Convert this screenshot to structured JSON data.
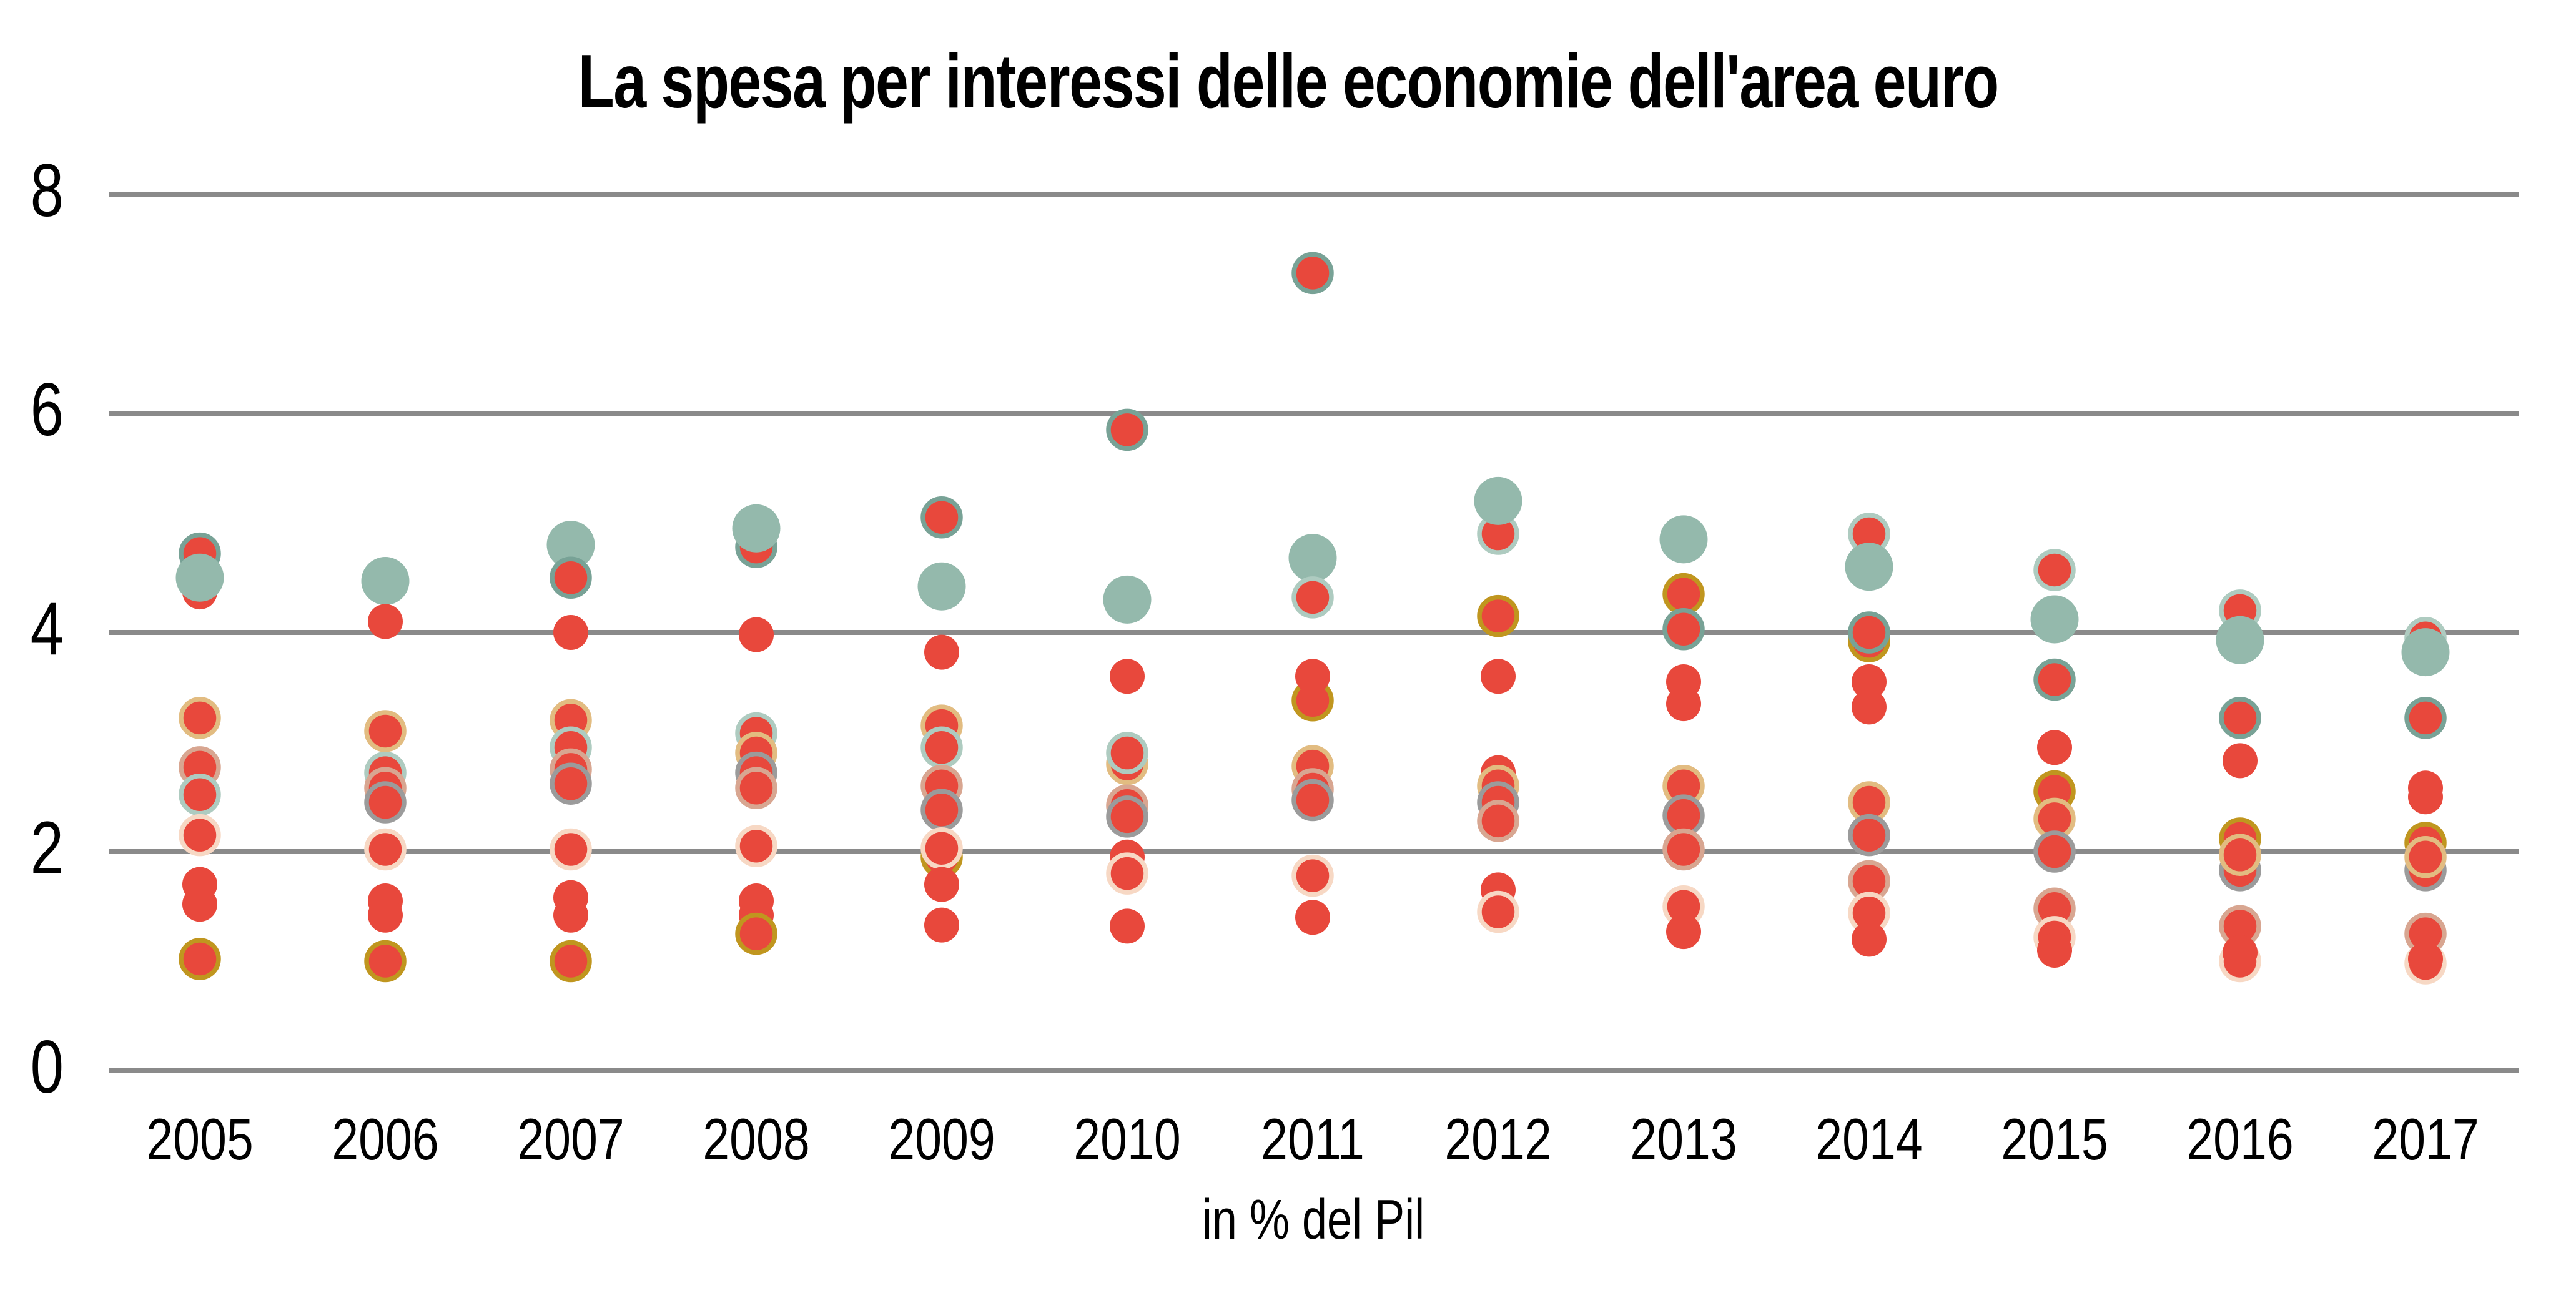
{
  "title": "La spesa per interessi delle economie dell'area euro",
  "xlabel": "in % del Pil",
  "colors": {
    "background": "#FFFFFF",
    "gridline": "#8A8A8A",
    "text": "#000000",
    "red_fill": "#E8483C",
    "teal_fill": "#94B9AC"
  },
  "chart_data": {
    "type": "scatter",
    "title": "La spesa per interessi delle economie dell'area euro",
    "xlabel": "in % del Pil",
    "ylabel": "",
    "x_categories": [
      2005,
      2006,
      2007,
      2008,
      2009,
      2010,
      2011,
      2012,
      2013,
      2014,
      2015,
      2016,
      2017
    ],
    "y_ticks": [
      8,
      6,
      4,
      2,
      0
    ],
    "ylim": [
      0,
      8.55
    ],
    "grid": "horizontal",
    "legend": "none",
    "units": "percent of GDP",
    "marker_styles": {
      "teal": {
        "fill": "#94B9AC",
        "stroke": "none",
        "r": 38.5,
        "note": "large plain teal circle"
      },
      "red": {
        "fill": "#E8483C",
        "stroke": "none",
        "r": 28,
        "note": "plain red circle"
      },
      "tealdark": {
        "fill": "#E8483C",
        "stroke": "#78A296",
        "r": 30,
        "note": "red circle, dark teal ring"
      },
      "lightteal": {
        "fill": "#E8483C",
        "stroke": "#AECBC0",
        "r": 30,
        "note": "red circle, light teal ring"
      },
      "tan": {
        "fill": "#E8483C",
        "stroke": "#E2BC81",
        "r": 30,
        "note": "red circle, tan ring"
      },
      "olive": {
        "fill": "#E8483C",
        "stroke": "#C0961F",
        "r": 30,
        "note": "red circle, dark gold ring"
      },
      "gray": {
        "fill": "#E8483C",
        "stroke": "#9B9B9B",
        "r": 30,
        "note": "red circle, gray ring"
      },
      "salmon": {
        "fill": "#E8483C",
        "stroke": "#D8A691",
        "r": 30,
        "note": "red circle, salmon ring"
      },
      "lightpink": {
        "fill": "#E8483C",
        "stroke": "#F7D8C4",
        "r": 30,
        "note": "red circle, pale pink ring"
      }
    },
    "points_by_year": [
      {
        "year": 2005,
        "points": [
          {
            "v": 4.72,
            "style": "tealdark"
          },
          {
            "v": 4.37,
            "style": "red"
          },
          {
            "v": 4.5,
            "style": "teal"
          },
          {
            "v": 3.22,
            "style": "tan"
          },
          {
            "v": 2.77,
            "style": "salmon"
          },
          {
            "v": 2.52,
            "style": "lightteal"
          },
          {
            "v": 2.15,
            "style": "lightpink"
          },
          {
            "v": 1.7,
            "style": "red"
          },
          {
            "v": 1.52,
            "style": "red"
          },
          {
            "v": 1.02,
            "style": "olive"
          }
        ]
      },
      {
        "year": 2006,
        "points": [
          {
            "v": 4.47,
            "style": "teal"
          },
          {
            "v": 4.1,
            "style": "red"
          },
          {
            "v": 3.1,
            "style": "tan"
          },
          {
            "v": 2.72,
            "style": "lightteal"
          },
          {
            "v": 2.58,
            "style": "salmon"
          },
          {
            "v": 2.45,
            "style": "gray"
          },
          {
            "v": 2.02,
            "style": "lightpink"
          },
          {
            "v": 1.55,
            "style": "red"
          },
          {
            "v": 1.42,
            "style": "red"
          },
          {
            "v": 1.0,
            "style": "olive"
          }
        ]
      },
      {
        "year": 2007,
        "points": [
          {
            "v": 4.8,
            "style": "teal"
          },
          {
            "v": 4.5,
            "style": "tealdark"
          },
          {
            "v": 4.0,
            "style": "red"
          },
          {
            "v": 3.2,
            "style": "tan"
          },
          {
            "v": 2.95,
            "style": "lightteal"
          },
          {
            "v": 2.75,
            "style": "salmon"
          },
          {
            "v": 2.62,
            "style": "gray"
          },
          {
            "v": 2.02,
            "style": "lightpink"
          },
          {
            "v": 1.58,
            "style": "red"
          },
          {
            "v": 1.42,
            "style": "red"
          },
          {
            "v": 1.0,
            "style": "olive"
          }
        ]
      },
      {
        "year": 2008,
        "points": [
          {
            "v": 4.78,
            "style": "tealdark"
          },
          {
            "v": 4.95,
            "style": "teal"
          },
          {
            "v": 3.98,
            "style": "red"
          },
          {
            "v": 3.08,
            "style": "lightteal"
          },
          {
            "v": 2.9,
            "style": "tan"
          },
          {
            "v": 2.72,
            "style": "gray"
          },
          {
            "v": 2.58,
            "style": "salmon"
          },
          {
            "v": 2.05,
            "style": "lightpink"
          },
          {
            "v": 1.55,
            "style": "red"
          },
          {
            "v": 1.42,
            "style": "red"
          },
          {
            "v": 1.25,
            "style": "olive"
          }
        ]
      },
      {
        "year": 2009,
        "points": [
          {
            "v": 5.05,
            "style": "tealdark"
          },
          {
            "v": 4.42,
            "style": "teal"
          },
          {
            "v": 3.82,
            "style": "red"
          },
          {
            "v": 3.15,
            "style": "tan"
          },
          {
            "v": 2.95,
            "style": "lightteal"
          },
          {
            "v": 2.6,
            "style": "salmon"
          },
          {
            "v": 2.38,
            "style": "gray"
          },
          {
            "v": 1.95,
            "style": "olive"
          },
          {
            "v": 2.03,
            "style": "lightpink"
          },
          {
            "v": 1.7,
            "style": "red"
          },
          {
            "v": 1.33,
            "style": "red"
          }
        ]
      },
      {
        "year": 2010,
        "points": [
          {
            "v": 5.85,
            "style": "tealdark"
          },
          {
            "v": 4.3,
            "style": "teal"
          },
          {
            "v": 3.6,
            "style": "red"
          },
          {
            "v": 2.8,
            "style": "tan"
          },
          {
            "v": 2.9,
            "style": "lightteal"
          },
          {
            "v": 2.42,
            "style": "salmon"
          },
          {
            "v": 2.32,
            "style": "gray"
          },
          {
            "v": 1.95,
            "style": "red"
          },
          {
            "v": 1.8,
            "style": "lightpink"
          },
          {
            "v": 1.32,
            "style": "red"
          }
        ]
      },
      {
        "year": 2011,
        "points": [
          {
            "v": 7.28,
            "style": "tealdark"
          },
          {
            "v": 4.68,
            "style": "teal"
          },
          {
            "v": 4.32,
            "style": "lightteal"
          },
          {
            "v": 3.38,
            "style": "olive"
          },
          {
            "v": 3.6,
            "style": "red"
          },
          {
            "v": 2.78,
            "style": "tan"
          },
          {
            "v": 2.57,
            "style": "salmon"
          },
          {
            "v": 2.47,
            "style": "gray"
          },
          {
            "v": 1.78,
            "style": "lightpink"
          },
          {
            "v": 1.4,
            "style": "red"
          }
        ]
      },
      {
        "year": 2012,
        "points": [
          {
            "v": 4.9,
            "style": "lightteal"
          },
          {
            "v": 5.2,
            "style": "teal"
          },
          {
            "v": 4.15,
            "style": "olive"
          },
          {
            "v": 3.6,
            "style": "red"
          },
          {
            "v": 2.72,
            "style": "red"
          },
          {
            "v": 2.6,
            "style": "tan"
          },
          {
            "v": 2.45,
            "style": "gray"
          },
          {
            "v": 2.28,
            "style": "salmon"
          },
          {
            "v": 1.65,
            "style": "red"
          },
          {
            "v": 1.45,
            "style": "lightpink"
          }
        ]
      },
      {
        "year": 2013,
        "points": [
          {
            "v": 4.85,
            "style": "teal"
          },
          {
            "v": 4.35,
            "style": "olive"
          },
          {
            "v": 4.03,
            "style": "tealdark"
          },
          {
            "v": 3.55,
            "style": "red"
          },
          {
            "v": 3.35,
            "style": "red"
          },
          {
            "v": 2.6,
            "style": "tan"
          },
          {
            "v": 2.33,
            "style": "gray"
          },
          {
            "v": 2.02,
            "style": "salmon"
          },
          {
            "v": 1.5,
            "style": "lightpink"
          },
          {
            "v": 1.27,
            "style": "red"
          }
        ]
      },
      {
        "year": 2014,
        "points": [
          {
            "v": 4.9,
            "style": "lightteal"
          },
          {
            "v": 4.6,
            "style": "teal"
          },
          {
            "v": 3.92,
            "style": "olive"
          },
          {
            "v": 4.0,
            "style": "tealdark"
          },
          {
            "v": 3.55,
            "style": "red"
          },
          {
            "v": 3.32,
            "style": "red"
          },
          {
            "v": 2.45,
            "style": "tan"
          },
          {
            "v": 2.15,
            "style": "gray"
          },
          {
            "v": 1.73,
            "style": "salmon"
          },
          {
            "v": 1.44,
            "style": "lightpink"
          },
          {
            "v": 1.2,
            "style": "red"
          }
        ]
      },
      {
        "year": 2015,
        "points": [
          {
            "v": 4.57,
            "style": "lightteal"
          },
          {
            "v": 4.12,
            "style": "teal"
          },
          {
            "v": 3.57,
            "style": "tealdark"
          },
          {
            "v": 2.95,
            "style": "red"
          },
          {
            "v": 2.55,
            "style": "olive"
          },
          {
            "v": 2.3,
            "style": "tan"
          },
          {
            "v": 2.0,
            "style": "gray"
          },
          {
            "v": 1.48,
            "style": "salmon"
          },
          {
            "v": 1.22,
            "style": "lightpink"
          },
          {
            "v": 1.1,
            "style": "red"
          }
        ]
      },
      {
        "year": 2016,
        "points": [
          {
            "v": 4.2,
            "style": "lightteal"
          },
          {
            "v": 3.93,
            "style": "teal"
          },
          {
            "v": 3.22,
            "style": "tealdark"
          },
          {
            "v": 2.83,
            "style": "red"
          },
          {
            "v": 1.83,
            "style": "gray"
          },
          {
            "v": 2.12,
            "style": "olive"
          },
          {
            "v": 1.97,
            "style": "tan"
          },
          {
            "v": 1.32,
            "style": "salmon"
          },
          {
            "v": 1.0,
            "style": "lightpink"
          },
          {
            "v": 1.08,
            "style": "red"
          }
        ]
      },
      {
        "year": 2017,
        "points": [
          {
            "v": 3.95,
            "style": "lightteal"
          },
          {
            "v": 3.82,
            "style": "teal"
          },
          {
            "v": 3.22,
            "style": "tealdark"
          },
          {
            "v": 2.58,
            "style": "red"
          },
          {
            "v": 2.5,
            "style": "red"
          },
          {
            "v": 1.83,
            "style": "gray"
          },
          {
            "v": 2.08,
            "style": "olive"
          },
          {
            "v": 1.95,
            "style": "tan"
          },
          {
            "v": 1.25,
            "style": "salmon"
          },
          {
            "v": 0.98,
            "style": "lightpink"
          },
          {
            "v": 1.02,
            "style": "red"
          }
        ]
      }
    ]
  }
}
